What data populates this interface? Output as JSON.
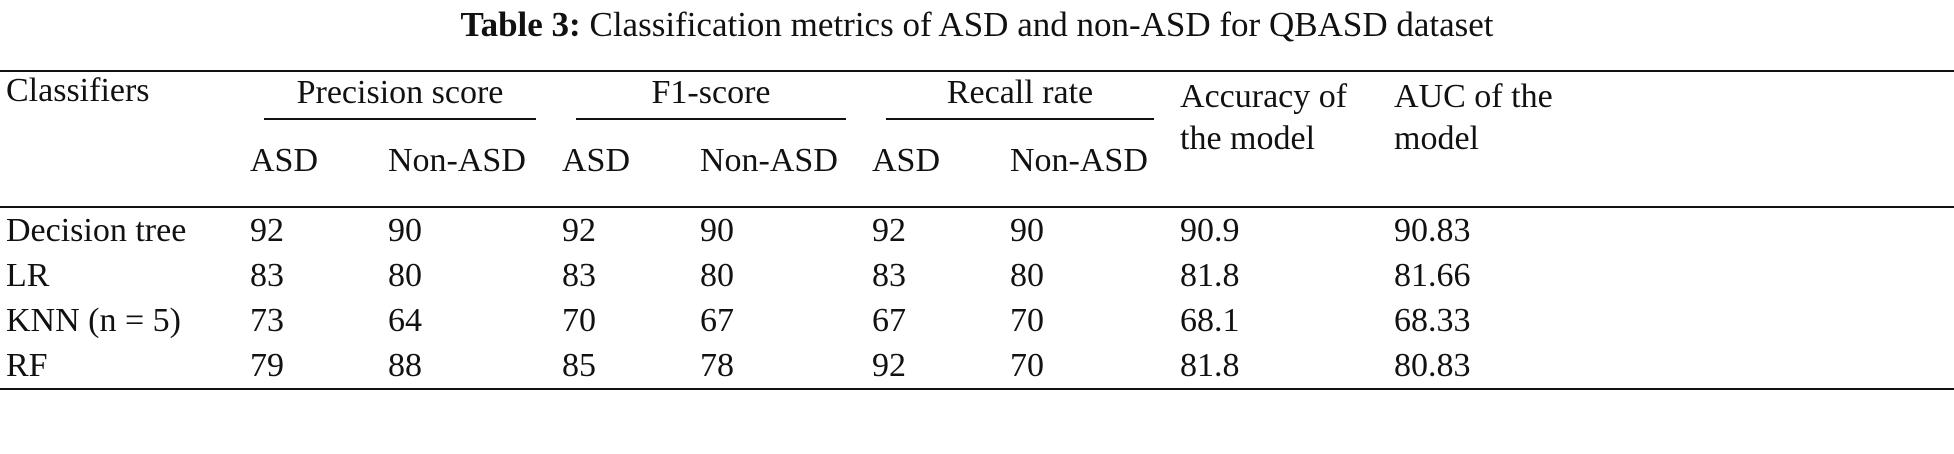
{
  "caption": {
    "label": "Table 3:",
    "text": "Classification metrics of ASD and non-ASD for QBASD dataset"
  },
  "table": {
    "first_header": "Classifiers",
    "groups": [
      "Precision score",
      "F1-score",
      "Recall rate"
    ],
    "sub_headers": [
      "ASD",
      "Non-ASD"
    ],
    "accuracy_header": "Accuracy of the model",
    "auc_header": "AUC of the model",
    "rows": [
      {
        "name": "Decision tree",
        "values": [
          "92",
          "90",
          "92",
          "90",
          "92",
          "90",
          "90.9",
          "90.83"
        ]
      },
      {
        "name": "LR",
        "values": [
          "83",
          "80",
          "83",
          "80",
          "83",
          "80",
          "81.8",
          "81.66"
        ]
      },
      {
        "name": "KNN (n = 5)",
        "values": [
          "73",
          "64",
          "70",
          "67",
          "67",
          "70",
          "68.1",
          "68.33"
        ]
      },
      {
        "name": "RF",
        "values": [
          "79",
          "88",
          "85",
          "78",
          "92",
          "70",
          "81.8",
          "80.83"
        ]
      }
    ]
  }
}
